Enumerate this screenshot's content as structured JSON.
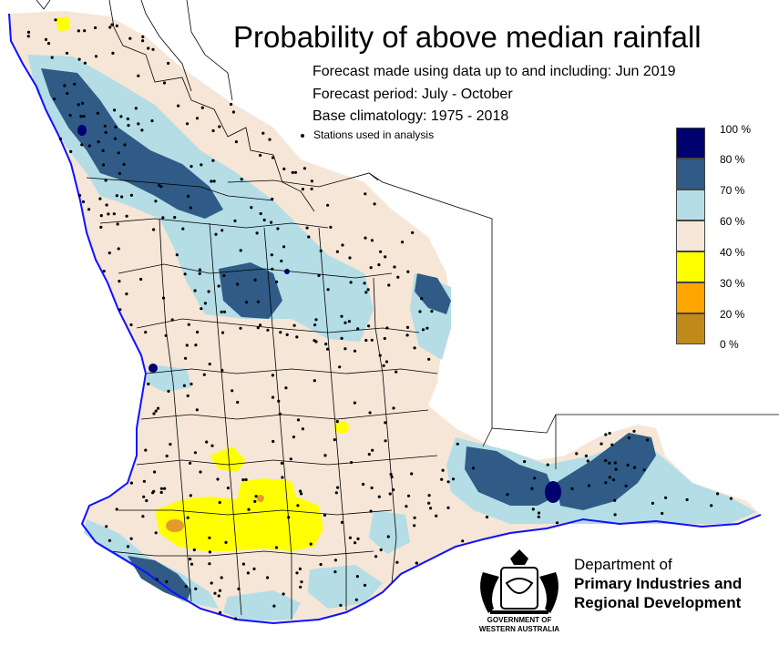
{
  "title": "Probability of above median rainfall",
  "subtitle_lines": [
    "Forecast made using data up to and including: Jun 2019",
    "Forecast period: July - October",
    "Base climatology: 1975 - 2018"
  ],
  "stations_label": "Stations used in analysis",
  "legend": [
    {
      "label": "100 %",
      "color": "#00006e"
    },
    {
      "label": "80 %",
      "color": "#2f5b86"
    },
    {
      "label": "70 %",
      "color": "#b4dde6"
    },
    {
      "label": "60 %",
      "color": "#f5e6d7"
    },
    {
      "label": "40 %",
      "color": "#ffff00"
    },
    {
      "label": "30 %",
      "color": "#ffa500"
    },
    {
      "label": "20 %",
      "color": "#c08a1a"
    },
    {
      "label": "0 %",
      "color": null
    }
  ],
  "department": {
    "line1": "Department of",
    "line2": "Primary Industries and",
    "line3": "Regional Development"
  },
  "government": {
    "line1": "GOVERNMENT OF",
    "line2": "WESTERN AUSTRALIA"
  },
  "colors": {
    "coastline": "#1010ff",
    "boundary": "#000000",
    "base": "#f5e6d7",
    "light_blue": "#b4dde6",
    "dark_blue": "#2f5b86",
    "navy": "#00006e",
    "yellow": "#ffff00",
    "orange": "#ffa500"
  }
}
